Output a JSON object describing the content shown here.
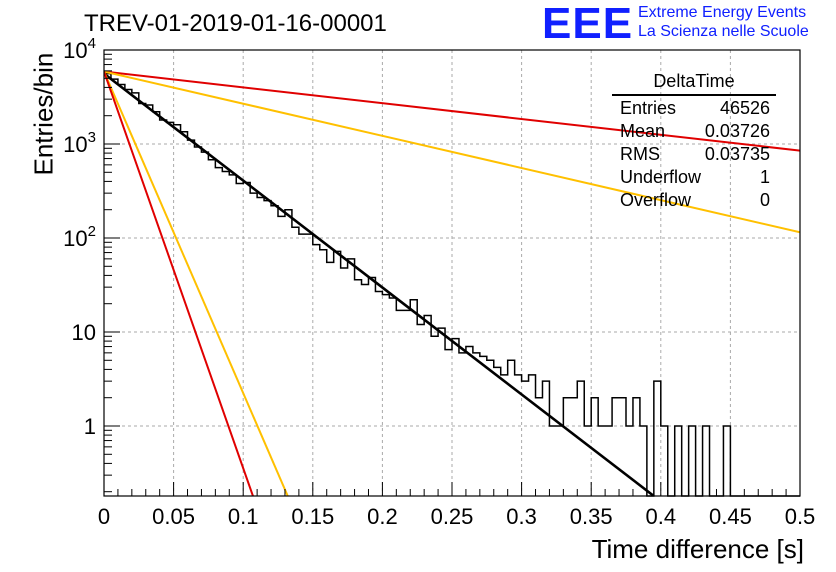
{
  "header": {
    "title": "TREV-01-2019-01-16-00001",
    "logo_letters": "EEE",
    "logo_line1": "Extreme Energy Events",
    "logo_line2": "La Scienza nelle Scuole"
  },
  "stats_box": {
    "title": "DeltaTime",
    "rows": [
      {
        "label": "Entries",
        "value": "46526"
      },
      {
        "label": "Mean",
        "value": "0.03726"
      },
      {
        "label": "RMS",
        "value": "0.03735"
      },
      {
        "label": "Underflow",
        "value": "1"
      },
      {
        "label": "Overflow",
        "value": "0"
      }
    ]
  },
  "colors": {
    "histogram": "#000000",
    "fit": "#000000",
    "red": "#e00000",
    "orange": "#ffc000",
    "grid": "#aaaaaa"
  },
  "chart_data": {
    "type": "line",
    "xlabel": "Time difference [s]",
    "ylabel": "Entries/bin",
    "xlim": [
      0,
      0.5
    ],
    "ylim": [
      0.18,
      10000
    ],
    "yscale": "log",
    "grid": true,
    "xticks": [
      "0",
      "0.05",
      "0.1",
      "0.15",
      "0.2",
      "0.25",
      "0.3",
      "0.35",
      "0.4",
      "0.45",
      "0.5"
    ],
    "yticks": [
      {
        "value": 1,
        "label": "1"
      },
      {
        "value": 10,
        "label": "10"
      },
      {
        "value": 100,
        "label": "10^2"
      },
      {
        "value": 1000,
        "label": "10^3"
      },
      {
        "value": 10000,
        "label": "10^4"
      }
    ],
    "histogram": {
      "bin_width": 0.005,
      "counts": [
        5600,
        4900,
        4300,
        3800,
        3500,
        2700,
        2600,
        2200,
        1800,
        1700,
        1600,
        1350,
        1100,
        930,
        820,
        680,
        560,
        510,
        470,
        380,
        390,
        300,
        270,
        250,
        220,
        170,
        200,
        130,
        110,
        110,
        85,
        75,
        55,
        72,
        48,
        60,
        36,
        32,
        38,
        27,
        25,
        23,
        17,
        17,
        22,
        12,
        15,
        9,
        11,
        6.5,
        8.5,
        6,
        7,
        6,
        5.5,
        5,
        4.2,
        3.5,
        5,
        3.5,
        3,
        3.5,
        2,
        3,
        1,
        1,
        2,
        2,
        3,
        1,
        2,
        1,
        1,
        2,
        2,
        1,
        2,
        1,
        0,
        3,
        1,
        0,
        1,
        0,
        1,
        0,
        1,
        0,
        0,
        1,
        0,
        0,
        0,
        0,
        0,
        0,
        0,
        0,
        0,
        0
      ]
    },
    "series": [
      {
        "color": "black",
        "points": [
          [
            0,
            5600
          ],
          [
            0.395,
            0.18
          ]
        ]
      },
      {
        "color": "red",
        "points": [
          [
            0,
            5900
          ],
          [
            0.5,
            850
          ]
        ]
      },
      {
        "color": "orange",
        "points": [
          [
            0,
            5900
          ],
          [
            0.5,
            115
          ]
        ]
      },
      {
        "color": "orange",
        "points": [
          [
            0,
            5900
          ],
          [
            0.132,
            0.18
          ]
        ]
      },
      {
        "color": "red",
        "points": [
          [
            0,
            5900
          ],
          [
            0.107,
            0.18
          ]
        ]
      }
    ]
  }
}
